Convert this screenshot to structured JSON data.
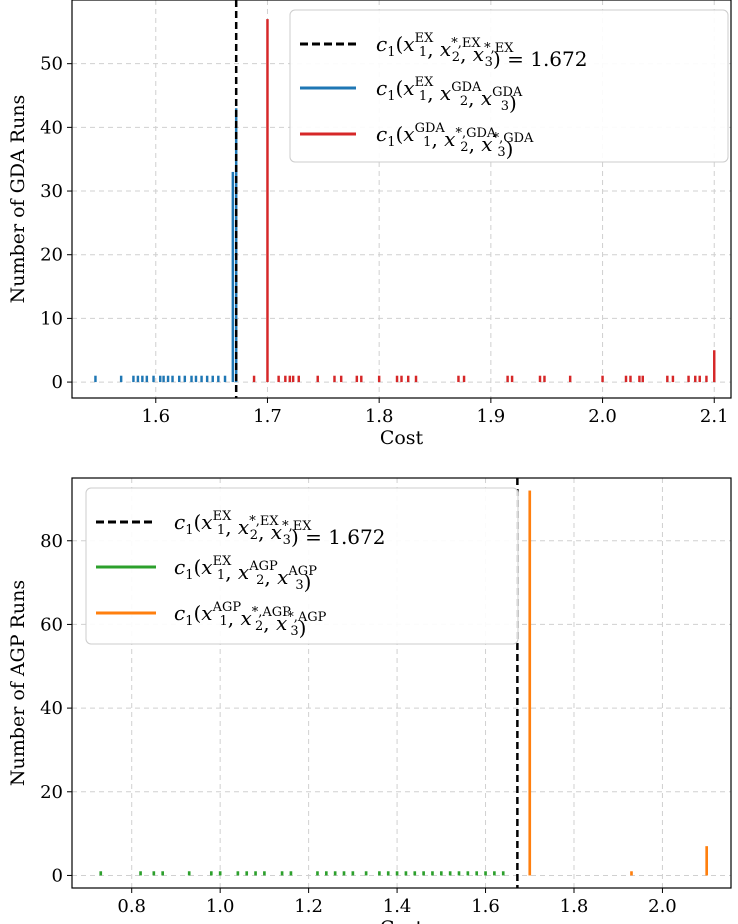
{
  "chart_data": [
    {
      "type": "histogram",
      "xlabel": "Cost",
      "ylabel": "Number of GDA Runs",
      "xlim": [
        1.525,
        2.115
      ],
      "ylim": [
        -2.5,
        60
      ],
      "xticks": [
        1.6,
        1.7,
        1.8,
        1.9,
        2.0,
        2.1
      ],
      "xtick_labels": [
        "1.6",
        "1.7",
        "1.8",
        "1.9",
        "2.0",
        "2.1"
      ],
      "yticks": [
        0,
        10,
        20,
        30,
        40,
        50
      ],
      "ytick_labels": [
        "0",
        "10",
        "20",
        "30",
        "40",
        "50"
      ],
      "grid": true,
      "legend_position": "upper right",
      "reference_line": {
        "x": 1.672,
        "style": "dashed",
        "color": "#000000"
      },
      "legend": [
        {
          "kind": "dashed",
          "color": "#000000",
          "label": {
            "pre": "c",
            "s1": "1",
            "mid": "(x",
            "a_sup": "EX",
            "a_sub": "1",
            "b_sup": "*,EX",
            "b_sub": "2",
            "c_sup": "*,EX",
            "c_sub": "3",
            "post": ") = 1.672"
          }
        },
        {
          "kind": "solid",
          "color": "#1f77b4",
          "label": {
            "pre": "c",
            "s1": "1",
            "mid": "(x",
            "a_sup": "EX",
            "a_sub": "1",
            "b_sup": "GDA",
            "b_sub": "2",
            "c_sup": "GDA",
            "c_sub": "3",
            "post": ")"
          }
        },
        {
          "kind": "solid",
          "color": "#d62728",
          "label": {
            "pre": "c",
            "s1": "1",
            "mid": "(x",
            "a_sup": "GDA",
            "a_sub": "1",
            "b_sup": "*,GDA",
            "b_sub": "2",
            "c_sup": "*,GDA",
            "c_sub": "3",
            "post": ")"
          }
        }
      ],
      "series": [
        {
          "name": "c1(x1^EX, x2^GDA, x3^GDA)",
          "color": "#1f77b4",
          "bin_width": 0.0022,
          "x": [
            1.546,
            1.569,
            1.58,
            1.584,
            1.588,
            1.592,
            1.598,
            1.604,
            1.607,
            1.611,
            1.615,
            1.621,
            1.626,
            1.632,
            1.636,
            1.641,
            1.646,
            1.651,
            1.656,
            1.662,
            1.669,
            1.672
          ],
          "values": [
            1,
            1,
            1,
            1,
            1,
            1,
            1,
            1,
            1,
            1,
            1,
            1,
            1,
            1,
            1,
            1,
            1,
            1,
            1,
            1,
            33,
            43
          ]
        },
        {
          "name": "c1(x1^GDA, x2^*,GDA, x3^*,GDA)",
          "color": "#d62728",
          "bin_width": 0.0022,
          "x": [
            1.688,
            1.7,
            1.71,
            1.716,
            1.72,
            1.723,
            1.728,
            1.745,
            1.76,
            1.766,
            1.78,
            1.784,
            1.8,
            1.816,
            1.82,
            1.826,
            1.833,
            1.871,
            1.876,
            1.915,
            1.919,
            1.944,
            1.948,
            1.971,
            2.0,
            2.021,
            2.025,
            2.033,
            2.036,
            2.058,
            2.063,
            2.077,
            2.083,
            2.087,
            2.093,
            2.1
          ],
          "values": [
            1,
            57,
            1,
            1,
            1,
            1,
            1,
            1,
            1,
            1,
            1,
            1,
            1,
            1,
            1,
            1,
            1,
            1,
            1,
            1,
            1,
            1,
            1,
            1,
            1,
            1,
            1,
            1,
            1,
            1,
            1,
            1,
            1,
            1,
            1,
            5
          ]
        }
      ]
    },
    {
      "type": "histogram",
      "xlabel": "Cost",
      "ylabel": "Number of AGP Runs",
      "xlim": [
        0.665,
        2.155
      ],
      "ylim": [
        -3,
        95
      ],
      "xticks": [
        0.8,
        1.0,
        1.2,
        1.4,
        1.6,
        1.8,
        2.0
      ],
      "xtick_labels": [
        "0.8",
        "1.0",
        "1.2",
        "1.4",
        "1.6",
        "1.8",
        "2.0"
      ],
      "yticks": [
        0,
        20,
        40,
        60,
        80
      ],
      "ytick_labels": [
        "0",
        "20",
        "40",
        "60",
        "80"
      ],
      "grid": true,
      "legend_position": "upper left",
      "reference_line": {
        "x": 1.672,
        "style": "dashed",
        "color": "#000000"
      },
      "legend": [
        {
          "kind": "dashed",
          "color": "#000000",
          "label": {
            "pre": "c",
            "s1": "1",
            "mid": "(x",
            "a_sup": "EX",
            "a_sub": "1",
            "b_sup": "*,EX",
            "b_sub": "2",
            "c_sup": "*,EX",
            "c_sub": "3",
            "post": ") = 1.672"
          }
        },
        {
          "kind": "solid",
          "color": "#2ca02c",
          "label": {
            "pre": "c",
            "s1": "1",
            "mid": "(x",
            "a_sup": "EX",
            "a_sub": "1",
            "b_sup": "AGP",
            "b_sub": "2",
            "c_sup": "AGP",
            "c_sub": "3",
            "post": ")"
          }
        },
        {
          "kind": "solid",
          "color": "#ff7f0e",
          "label": {
            "pre": "c",
            "s1": "1",
            "mid": "(x",
            "a_sup": "AGP",
            "a_sub": "1",
            "b_sup": "*,AGP",
            "b_sub": "2",
            "c_sup": "*,AGP",
            "c_sub": "3",
            "post": ")"
          }
        }
      ],
      "series": [
        {
          "name": "c1(x1^EX, x2^AGP, x3^AGP)",
          "color": "#2ca02c",
          "bin_width": 0.006,
          "x": [
            0.73,
            0.82,
            0.85,
            0.87,
            0.93,
            0.98,
            1.0,
            1.04,
            1.06,
            1.08,
            1.1,
            1.14,
            1.16,
            1.22,
            1.24,
            1.26,
            1.28,
            1.3,
            1.33,
            1.36,
            1.38,
            1.4,
            1.42,
            1.44,
            1.46,
            1.48,
            1.5,
            1.52,
            1.54,
            1.56,
            1.58,
            1.6,
            1.62,
            1.64
          ],
          "values": [
            1,
            1,
            1,
            1,
            1,
            1,
            1,
            1,
            1,
            1,
            1,
            1,
            1,
            1,
            1,
            1,
            1,
            1,
            1,
            1,
            1,
            1,
            1,
            1,
            1,
            1,
            1,
            1,
            1,
            1,
            1,
            1,
            1,
            1
          ]
        },
        {
          "name": "c1(x1^AGP, x2^*,AGP, x3^*,AGP)",
          "color": "#ff7f0e",
          "bin_width": 0.006,
          "x": [
            1.7,
            1.93,
            2.1
          ],
          "values": [
            92,
            1,
            7
          ]
        }
      ]
    }
  ]
}
